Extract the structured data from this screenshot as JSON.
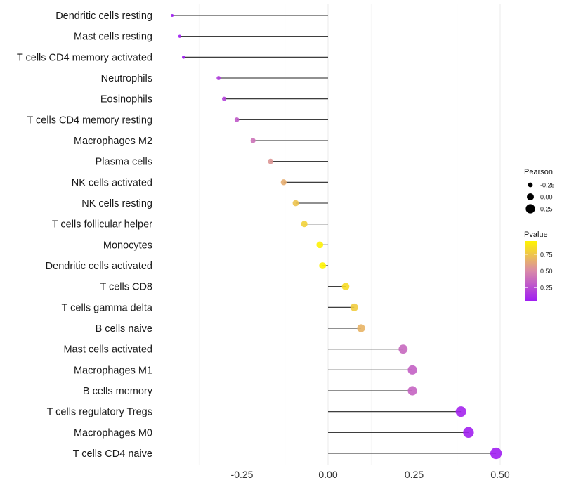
{
  "chart_data": {
    "type": "lollipop",
    "title": "",
    "xlabel": "",
    "ylabel": "",
    "xlim": [
      -0.49,
      0.52
    ],
    "x_ticks": [
      -0.25,
      0.0,
      0.25,
      0.5
    ],
    "x_tick_labels": [
      "-0.25",
      "0.00",
      "0.25",
      "0.50"
    ],
    "grid": true,
    "categories": [
      "Dendritic cells resting",
      "Mast cells resting",
      "T cells CD4 memory activated",
      "Neutrophils",
      "Eosinophils",
      "T cells CD4 memory resting",
      "Macrophages M2",
      "Plasma cells",
      "NK cells activated",
      "NK cells resting",
      "T cells follicular helper",
      "Monocytes",
      "Dendritic cells activated",
      "T cells CD8",
      "T cells gamma delta",
      "B cells naive",
      "Mast cells activated",
      "Macrophages M1",
      "B cells memory",
      "T cells regulatory  Tregs",
      "Macrophages M0",
      "T cells CD4 naive"
    ],
    "pearson": [
      -0.453,
      -0.431,
      -0.42,
      -0.318,
      -0.302,
      -0.265,
      -0.218,
      -0.167,
      -0.129,
      -0.094,
      -0.069,
      -0.024,
      -0.016,
      0.051,
      0.076,
      0.096,
      0.218,
      0.245,
      0.245,
      0.386,
      0.408,
      0.488
    ],
    "pvalue": [
      0.04,
      0.05,
      0.06,
      0.18,
      0.2,
      0.3,
      0.4,
      0.55,
      0.65,
      0.74,
      0.8,
      0.94,
      0.95,
      0.85,
      0.78,
      0.68,
      0.36,
      0.33,
      0.34,
      0.08,
      0.06,
      0.03
    ],
    "legend": {
      "placement": "right",
      "size_title": "Pearson",
      "size_values": [
        -0.25,
        0.0,
        0.25
      ],
      "size_labels": [
        "-0.25",
        "0.00",
        "0.25"
      ],
      "color_title": "Pvalue",
      "color_range": [
        0.05,
        0.95
      ],
      "color_ticks": [
        0.25,
        0.5,
        0.75
      ],
      "color_tick_labels": [
        "0.25",
        "0.50",
        "0.75"
      ],
      "color_low": "#a01ef2",
      "color_mid": "#d98aa8",
      "color_high": "#fff400"
    }
  }
}
